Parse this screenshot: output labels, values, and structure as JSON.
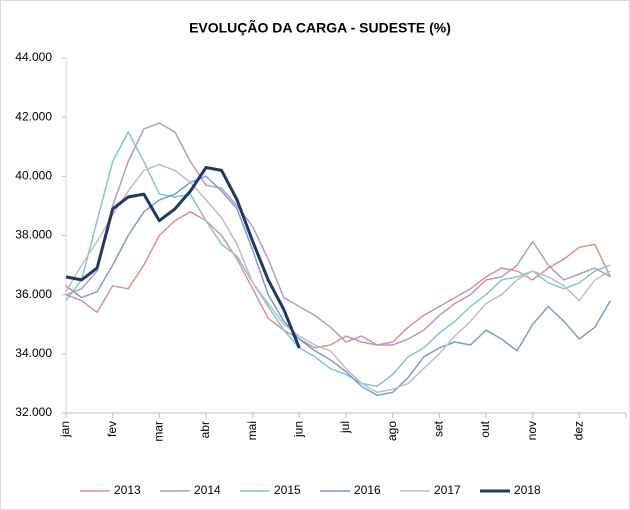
{
  "chart_data": {
    "type": "line",
    "title": "EVOLUÇÃO DA CARGA - SUDESTE (%)",
    "categories": [
      "jan",
      null,
      null,
      "fev",
      null,
      null,
      "mar",
      null,
      null,
      "abr",
      null,
      null,
      "mai",
      null,
      null,
      "jun",
      null,
      null,
      "jul",
      null,
      null,
      "ago",
      null,
      null,
      "set",
      null,
      null,
      "out",
      null,
      null,
      "nov",
      null,
      null,
      "dez",
      null,
      null
    ],
    "ylim": [
      32000,
      44000
    ],
    "yticks": [
      {
        "value": 32000,
        "label": "32.000"
      },
      {
        "value": 34000,
        "label": "34.000"
      },
      {
        "value": 36000,
        "label": "36.000"
      },
      {
        "value": 38000,
        "label": "38.000"
      },
      {
        "value": 40000,
        "label": "40.000"
      },
      {
        "value": 42000,
        "label": "42.000"
      },
      {
        "value": 44000,
        "label": "44.000"
      }
    ],
    "grid": false,
    "legend": "bottom",
    "series": [
      {
        "name": "2013",
        "color": "#e08f8c",
        "linewidth": 1.5,
        "values": [
          36000,
          35800,
          35400,
          36300,
          36200,
          37000,
          38000,
          38500,
          38800,
          38500,
          38000,
          37200,
          36200,
          35200,
          34800,
          34500,
          34200,
          34300,
          34600,
          34400,
          34300,
          34400,
          34900,
          35300,
          35600,
          35900,
          36200,
          36600,
          36900,
          36800,
          36500,
          36900,
          37200,
          37600,
          37700,
          36600
        ]
      },
      {
        "name": "2014",
        "color": "#b19ccb",
        "linewidth": 1.5,
        "values": [
          36000,
          36200,
          36800,
          39000,
          40500,
          41600,
          41800,
          41500,
          40500,
          39700,
          39600,
          39000,
          38300,
          37200,
          35900,
          35600,
          35300,
          34900,
          34400,
          34600,
          34300,
          34300,
          34500,
          34800,
          35300,
          35700,
          36000,
          36500,
          36600,
          37000,
          37800,
          37000,
          36500,
          36700,
          36900,
          36600
        ]
      },
      {
        "name": "2015",
        "color": "#7fc8d6",
        "linewidth": 1.5,
        "values": [
          35800,
          36500,
          38500,
          40500,
          41500,
          40500,
          39400,
          39300,
          39400,
          38500,
          37700,
          37300,
          36400,
          35600,
          34800,
          34200,
          33900,
          33500,
          33300,
          33000,
          32900,
          33300,
          33900,
          34200,
          34700,
          35100,
          35600,
          36000,
          36500,
          36600,
          36800,
          36400,
          36200,
          36400,
          36800,
          37000
        ]
      },
      {
        "name": "2016",
        "color": "#7f9ccc",
        "linewidth": 1.5,
        "values": [
          36300,
          35900,
          36100,
          37000,
          38000,
          38800,
          39200,
          39400,
          39800,
          40000,
          39500,
          38900,
          37500,
          36000,
          35100,
          34500,
          34100,
          33800,
          33400,
          32900,
          32600,
          32700,
          33200,
          33900,
          34200,
          34400,
          34300,
          34800,
          34500,
          34100,
          35000,
          35600,
          35100,
          34500,
          34900,
          35800
        ]
      },
      {
        "name": "2017",
        "color": "#bfbfbf",
        "linewidth": 1.5,
        "values": [
          36100,
          37000,
          37800,
          38700,
          39500,
          40200,
          40400,
          40200,
          39800,
          39200,
          38600,
          37700,
          36400,
          35700,
          35000,
          34600,
          34300,
          34100,
          33500,
          33000,
          32700,
          32800,
          33000,
          33500,
          34000,
          34600,
          35100,
          35700,
          36000,
          36500,
          36800,
          36600,
          36300,
          35800,
          36500,
          36800
        ]
      },
      {
        "name": "2018",
        "color": "#1f3864",
        "linewidth": 3,
        "values": [
          36600,
          36500,
          36900,
          38900,
          39300,
          39400,
          38500,
          38900,
          39500,
          40300,
          40200,
          39200,
          37800,
          36500,
          35500,
          34200,
          null,
          null,
          null,
          null,
          null,
          null,
          null,
          null,
          null,
          null,
          null,
          null,
          null,
          null,
          null,
          null,
          null,
          null,
          null,
          null
        ]
      }
    ]
  }
}
